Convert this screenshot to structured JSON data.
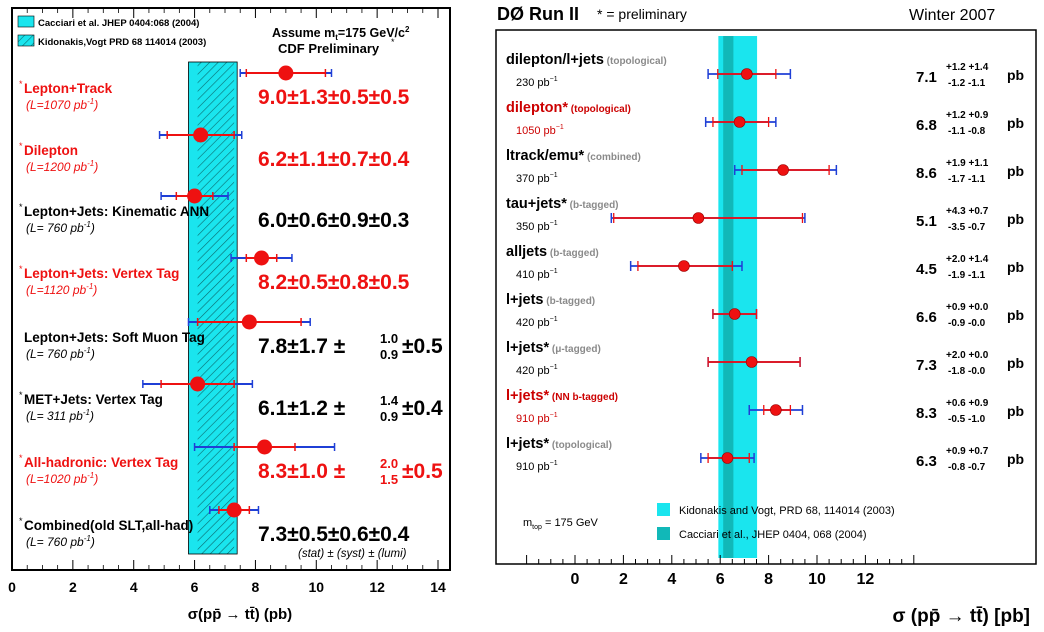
{
  "colors": {
    "red": "#ee1111",
    "blue": "#1f3fd6",
    "cyan": "#1ae5ee",
    "teal": "#11b8b8",
    "dark_red": "#cc0000",
    "gray": "#8a8a8a",
    "black": "#000000"
  },
  "chart_data": [
    {
      "type": "scatter",
      "xlabel": "σ(pp̄ → tt̄) (pb)",
      "xlim": [
        0,
        14
      ],
      "x_ticks": [
        "0",
        "2",
        "4",
        "6",
        "8",
        "10",
        "12",
        "14"
      ],
      "legend": [
        {
          "label": "Cacciari et al. JHEP 0404:068 (2004)",
          "style": "solid-cyan"
        },
        {
          "label": "Kidonakis,Vogt PRD 68 114014 (2003)",
          "style": "hatched"
        }
      ],
      "header_lines": [
        "Assume m",
        "t",
        "=175 GeV/c",
        "2",
        "CDF Preliminary"
      ],
      "band_ranges": {
        "kidonakis_vogt": [
          5.8,
          7.4
        ],
        "cacciari": [
          6.1,
          7.3
        ]
      },
      "footnote": "(stat) ± (syst) ± (lumi)",
      "measurements": [
        {
          "name": "Lepton+Track",
          "lumi": "(L=1070 pb",
          "lumi_exp": "-1",
          "lumi_close": ")",
          "starred": true,
          "red": true,
          "value": 9.0,
          "stat": 1.3,
          "total": 1.5,
          "sys_txt": "±0.5",
          "lumi_txt": "±0.5",
          "result": "9.0±1.3±0.5±0.5"
        },
        {
          "name": "Dilepton",
          "lumi": "(L=1200 pb",
          "lumi_exp": "-1",
          "lumi_close": ")",
          "starred": true,
          "red": true,
          "value": 6.2,
          "stat": 1.1,
          "total": 1.35,
          "sys_txt": "±0.7",
          "lumi_txt": "±0.4",
          "result": "6.2±1.1±0.7±0.4"
        },
        {
          "name": "Lepton+Jets: Kinematic ANN",
          "lumi": "(L= 760 pb",
          "lumi_exp": "-1",
          "lumi_close": ")",
          "starred": true,
          "red": false,
          "value": 6.0,
          "stat": 0.6,
          "total": 1.1,
          "sys_txt": "±0.9",
          "lumi_txt": "±0.3",
          "result": "6.0±0.6±0.9±0.3"
        },
        {
          "name": "Lepton+Jets: Vertex Tag",
          "lumi": "(L=1120 pb",
          "lumi_exp": "-1",
          "lumi_close": ")",
          "starred": true,
          "red": true,
          "value": 8.2,
          "stat": 0.5,
          "total": 1.0,
          "sys_txt": "±0.8",
          "lumi_txt": "±0.5",
          "result": "8.2±0.5±0.8±0.5"
        },
        {
          "name": "Lepton+Jets: Soft Muon Tag",
          "lumi": "(L= 760 pb",
          "lumi_exp": "-1",
          "lumi_close": ")",
          "starred": false,
          "red": false,
          "value": 7.8,
          "stat": 1.7,
          "total": 2.0,
          "sys_up": "1.0",
          "sys_down": "0.9",
          "lumi_txt": "±0.5",
          "result": "7.8±1.7"
        },
        {
          "name": "MET+Jets: Vertex Tag",
          "lumi": "(L= 311 pb",
          "lumi_exp": "-1",
          "lumi_close": ")",
          "starred": true,
          "red": false,
          "value": 6.1,
          "stat": 1.2,
          "total": 1.8,
          "sys_up": "1.4",
          "sys_down": "0.9",
          "lumi_txt": "±0.4",
          "result": "6.1±1.2"
        },
        {
          "name": "All-hadronic: Vertex Tag",
          "lumi": "(L=1020 pb",
          "lumi_exp": "-1",
          "lumi_close": ")",
          "starred": true,
          "red": true,
          "value": 8.3,
          "stat": 1.0,
          "total": 2.3,
          "sys_up": "2.0",
          "sys_down": "1.5",
          "lumi_txt": "±0.5",
          "result": "8.3±1.0"
        },
        {
          "name": "Combined(old SLT,all-had)",
          "lumi": "(L= 760 pb",
          "lumi_exp": "-1",
          "lumi_close": ")",
          "starred": true,
          "red": false,
          "value": 7.3,
          "stat": 0.5,
          "total": 0.8,
          "sys_txt": "±0.6",
          "lumi_txt": "±0.4",
          "result": "7.3±0.5±0.6±0.4"
        }
      ]
    },
    {
      "type": "scatter",
      "title": "DØ Run II",
      "note": "* = preliminary",
      "date": "Winter 2007",
      "xlabel": "σ (pp̄ → tt̄) [pb]",
      "xlim": [
        0,
        12
      ],
      "x_ticks": [
        "0",
        "2",
        "4",
        "6",
        "8",
        "10",
        "12"
      ],
      "mtop_label": "m",
      "mtop_sub": "top",
      "mtop_value": " = 175 GeV",
      "legend": [
        {
          "label": "Kidonakis and Vogt, PRD 68, 114014 (2003)",
          "color": "#1ae5ee"
        },
        {
          "label": "Cacciari et al., JHEP 0404, 068 (2004)",
          "color": "#11b8b8"
        }
      ],
      "band_ranges": {
        "kidonakis_vogt": [
          5.8,
          7.4
        ],
        "cacciari": [
          6.0,
          7.0
        ]
      },
      "measurements": [
        {
          "name": "dilepton/l+jets",
          "method": "(topological)",
          "lumi": "230 pb",
          "lumi_exp": "−1",
          "red": false,
          "value": 7.1,
          "stat_lo": 1.2,
          "stat_hi": 1.2,
          "tot_lo": 1.6,
          "tot_hi": 1.8,
          "val_txt": "7.1",
          "up": "+1.2 +1.4",
          "down": "-1.2 -1.1",
          "unit": "pb"
        },
        {
          "name": "dilepton*",
          "method": "(topological)",
          "lumi": "1050 pb",
          "lumi_exp": "−1",
          "red": true,
          "value": 6.8,
          "stat_lo": 1.1,
          "stat_hi": 1.2,
          "tot_lo": 1.4,
          "tot_hi": 1.5,
          "val_txt": "6.8",
          "up": "+1.2 +0.9",
          "down": "-1.1 -0.8",
          "unit": "pb"
        },
        {
          "name": "ltrack/emu*",
          "method": "(combined)",
          "lumi": "370 pb",
          "lumi_exp": "−1",
          "red": false,
          "value": 8.6,
          "stat_lo": 1.7,
          "stat_hi": 1.9,
          "tot_lo": 2.0,
          "tot_hi": 2.2,
          "val_txt": "8.6",
          "up": "+1.9 +1.1",
          "down": "-1.7 -1.1",
          "unit": "pb"
        },
        {
          "name": "tau+jets*",
          "method": "(b-tagged)",
          "lumi": "350 pb",
          "lumi_exp": "−1",
          "red": false,
          "value": 5.1,
          "stat_lo": 3.5,
          "stat_hi": 4.3,
          "tot_lo": 3.6,
          "tot_hi": 4.4,
          "val_txt": "5.1",
          "up": "+4.3 +0.7",
          "down": "-3.5 -0.7",
          "unit": "pb"
        },
        {
          "name": "alljets",
          "method": "(b-tagged)",
          "lumi": "410 pb",
          "lumi_exp": "−1",
          "red": false,
          "value": 4.5,
          "stat_lo": 1.9,
          "stat_hi": 2.0,
          "tot_lo": 2.2,
          "tot_hi": 2.4,
          "val_txt": "4.5",
          "up": "+2.0 +1.4",
          "down": "-1.9 -1.1",
          "unit": "pb"
        },
        {
          "name": "l+jets",
          "method": "(b-tagged)",
          "lumi": "420 pb",
          "lumi_exp": "−1",
          "red": false,
          "value": 6.6,
          "stat_lo": 0.9,
          "stat_hi": 0.9,
          "tot_lo": 0.9,
          "tot_hi": 0.9,
          "val_txt": "6.6",
          "up": "+0.9 +0.0",
          "down": "-0.9 -0.0",
          "unit": "pb"
        },
        {
          "name": "l+jets*",
          "method": "(μ-tagged)",
          "lumi": "420 pb",
          "lumi_exp": "−1",
          "red": false,
          "value": 7.3,
          "stat_lo": 1.8,
          "stat_hi": 2.0,
          "tot_lo": 1.8,
          "tot_hi": 2.0,
          "val_txt": "7.3",
          "up": "+2.0 +0.0",
          "down": "-1.8 -0.0",
          "unit": "pb"
        },
        {
          "name": "l+jets*",
          "method": "(NN b-tagged)",
          "lumi": "910 pb",
          "lumi_exp": "−1",
          "red": true,
          "value": 8.3,
          "stat_lo": 0.5,
          "stat_hi": 0.6,
          "tot_lo": 1.1,
          "tot_hi": 1.1,
          "val_txt": "8.3",
          "up": "+0.6 +0.9",
          "down": "-0.5 -1.0",
          "unit": "pb"
        },
        {
          "name": "l+jets*",
          "method": "(topological)",
          "lumi": "910 pb",
          "lumi_exp": "−1",
          "red": false,
          "value": 6.3,
          "stat_lo": 0.8,
          "stat_hi": 0.9,
          "tot_lo": 1.1,
          "tot_hi": 1.1,
          "val_txt": "6.3",
          "up": "+0.9 +0.7",
          "down": "-0.8 -0.7",
          "unit": "pb"
        }
      ]
    }
  ]
}
